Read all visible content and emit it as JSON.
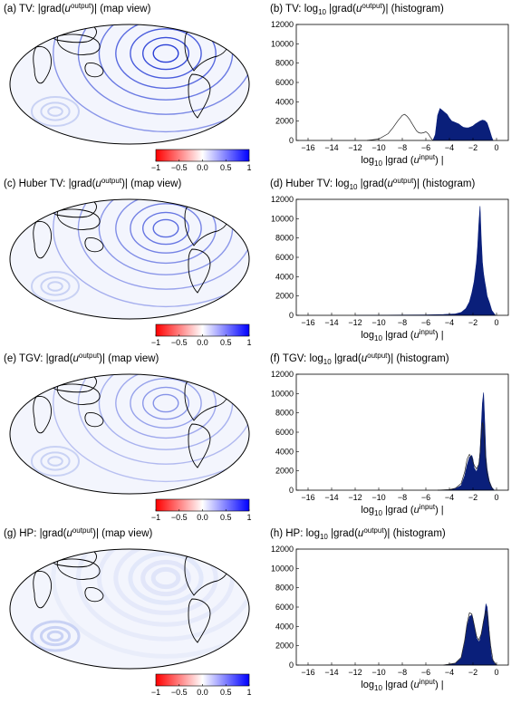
{
  "colorbar": {
    "ticks": [
      "−1",
      "−0.5",
      "0.0",
      "0.5",
      "1"
    ],
    "colors": {
      "neg": "#ff0000",
      "mid": "#ffffff",
      "pos": "#0000ff"
    }
  },
  "colors": {
    "hist_fill": "#0a1f7a",
    "outline": "#000000",
    "shade": "#c9d2f4",
    "ring": "#2a3fd6"
  },
  "panels": [
    {
      "map_title": {
        "pre": "(a) TV: |grad(",
        "var": "u",
        "sup": "output",
        "post": ")| (map view)"
      },
      "hist_title": {
        "pre": "(b) TV: log",
        "sub": "10",
        "mid": " |grad(",
        "var": "u",
        "sup": "output",
        "post": ")| (histogram)"
      },
      "xlabel": {
        "pre": "log",
        "sub": "10",
        "mid": " |grad (",
        "var": "u",
        "sup": "input",
        "post": ") |"
      }
    },
    {
      "map_title": {
        "pre": "(c) Huber TV: |grad(",
        "var": "u",
        "sup": "output",
        "post": ")| (map view)"
      },
      "hist_title": {
        "pre": "(d) Huber TV: log",
        "sub": "10",
        "mid": " |grad(",
        "var": "u",
        "sup": "output",
        "post": ")| (histogram)"
      },
      "xlabel": {
        "pre": "log",
        "sub": "10",
        "mid": " |grad (",
        "var": "u",
        "sup": "input",
        "post": ") |"
      }
    },
    {
      "map_title": {
        "pre": "(e) TGV: |grad(",
        "var": "u",
        "sup": "output",
        "post": ")| (map view)"
      },
      "hist_title": {
        "pre": "(f) TGV: log",
        "sub": "10",
        "mid": " |grad(",
        "var": "u",
        "sup": "output",
        "post": ")| (histogram)"
      },
      "xlabel": {
        "pre": "log",
        "sub": "10",
        "mid": " |grad (",
        "var": "u",
        "sup": "input",
        "post": ") |"
      }
    },
    {
      "map_title": {
        "pre": "(g) HP: |grad(",
        "var": "u",
        "sup": "output",
        "post": ")| (map view)"
      },
      "hist_title": {
        "pre": "(h) HP: log",
        "sub": "10",
        "mid": " |grad(",
        "var": "u",
        "sup": "output",
        "post": ")| (histogram)"
      },
      "xlabel": {
        "pre": "log",
        "sub": "10",
        "mid": " |grad (",
        "var": "u",
        "sup": "input",
        "post": ") |"
      }
    }
  ],
  "chart_data": [
    {
      "type": "area",
      "xlim": [
        -17,
        1
      ],
      "ylim": [
        0,
        12000
      ],
      "xticks": [
        -16,
        -14,
        -12,
        -10,
        -8,
        -6,
        -4,
        -2,
        0
      ],
      "yticks": [
        0,
        2000,
        4000,
        6000,
        8000,
        10000,
        12000
      ],
      "series": [
        {
          "style": "filled",
          "x": [
            -5.4,
            -5.2,
            -5.0,
            -4.8,
            -4.6,
            -4.4,
            -4.2,
            -4.0,
            -3.8,
            -3.6,
            -3.4,
            -3.2,
            -3.0,
            -2.8,
            -2.6,
            -2.4,
            -2.2,
            -2.0,
            -1.8,
            -1.6,
            -1.4,
            -1.2,
            -1.0,
            -0.8,
            -0.6,
            -0.4,
            -0.3
          ],
          "y": [
            0,
            600,
            2600,
            3300,
            3100,
            2900,
            2700,
            2300,
            2000,
            1900,
            1800,
            1700,
            1500,
            1350,
            1300,
            1300,
            1400,
            1500,
            1700,
            1850,
            2000,
            2100,
            2050,
            1800,
            1100,
            300,
            0
          ]
        },
        {
          "style": "outline",
          "x": [
            -11,
            -10,
            -9.2,
            -8.8,
            -8.4,
            -8.0,
            -7.8,
            -7.6,
            -7.4,
            -7.2,
            -7.0,
            -6.8,
            -6.6,
            -6.4,
            -6.2,
            -6.0,
            -5.8,
            -5.6,
            -5.4
          ],
          "y": [
            0,
            150,
            700,
            1300,
            2000,
            2600,
            2700,
            2500,
            2200,
            1800,
            1400,
            1000,
            800,
            750,
            800,
            900,
            700,
            300,
            0
          ]
        }
      ]
    },
    {
      "type": "area",
      "xlim": [
        -17,
        1
      ],
      "ylim": [
        0,
        12000
      ],
      "xticks": [
        -16,
        -14,
        -12,
        -10,
        -8,
        -6,
        -4,
        -2,
        0
      ],
      "yticks": [
        0,
        2000,
        4000,
        6000,
        8000,
        10000,
        12000
      ],
      "series": [
        {
          "style": "filled",
          "x": [
            -12,
            -8,
            -6,
            -4.5,
            -3.5,
            -3.0,
            -2.6,
            -2.3,
            -2.1,
            -1.9,
            -1.7,
            -1.6,
            -1.5,
            -1.4,
            -1.3,
            -1.2,
            -1.1,
            -1.0,
            -0.9,
            -0.8,
            -0.6,
            -0.4,
            -0.1
          ],
          "y": [
            0,
            30,
            50,
            80,
            150,
            300,
            700,
            1400,
            2300,
            3500,
            5500,
            7200,
            9500,
            11300,
            8000,
            5500,
            4300,
            3500,
            2800,
            2000,
            1300,
            500,
            0
          ]
        }
      ]
    },
    {
      "type": "area",
      "xlim": [
        -17,
        1
      ],
      "ylim": [
        0,
        12000
      ],
      "xticks": [
        -16,
        -14,
        -12,
        -10,
        -8,
        -6,
        -4,
        -2,
        0
      ],
      "yticks": [
        0,
        2000,
        4000,
        6000,
        8000,
        10000,
        12000
      ],
      "series": [
        {
          "style": "filled",
          "x": [
            -5,
            -4,
            -3.5,
            -3.0,
            -2.7,
            -2.5,
            -2.3,
            -2.1,
            -2.0,
            -1.9,
            -1.7,
            -1.5,
            -1.4,
            -1.3,
            -1.2,
            -1.1,
            -1.0,
            -0.9,
            -0.8,
            -0.7,
            -0.6,
            -0.4,
            -0.2
          ],
          "y": [
            0,
            50,
            150,
            500,
            1500,
            2600,
            3400,
            3600,
            3200,
            2300,
            1900,
            2600,
            4000,
            6500,
            9000,
            10100,
            7000,
            3500,
            2200,
            1500,
            900,
            300,
            0
          ]
        },
        {
          "style": "outline",
          "x": [
            -5,
            -4,
            -3.5,
            -3.0,
            -2.7,
            -2.5,
            -2.3,
            -2.1,
            -1.9,
            -1.7,
            -1.5,
            -1.4,
            -1.3,
            -1.2,
            -1.1,
            -1.0,
            -0.9,
            -0.8,
            -0.7,
            -0.5,
            -0.3
          ],
          "y": [
            0,
            60,
            200,
            700,
            1900,
            3200,
            3700,
            3300,
            2600,
            2200,
            2700,
            3800,
            5800,
            7000,
            6500,
            4500,
            2900,
            1800,
            1200,
            500,
            0
          ]
        }
      ]
    },
    {
      "type": "area",
      "xlim": [
        -17,
        1
      ],
      "ylim": [
        0,
        12000
      ],
      "xticks": [
        -16,
        -14,
        -12,
        -10,
        -8,
        -6,
        -4,
        -2,
        0
      ],
      "yticks": [
        0,
        2000,
        4000,
        6000,
        8000,
        10000,
        12000
      ],
      "series": [
        {
          "style": "filled",
          "x": [
            -4.5,
            -3.5,
            -3.0,
            -2.7,
            -2.5,
            -2.3,
            -2.1,
            -2.0,
            -1.9,
            -1.7,
            -1.5,
            -1.4,
            -1.2,
            -1.0,
            -0.9,
            -0.8,
            -0.7,
            -0.6,
            -0.5,
            -0.4,
            -0.2,
            0
          ],
          "y": [
            0,
            150,
            700,
            2300,
            4000,
            5000,
            5200,
            4800,
            4000,
            2800,
            2400,
            2600,
            3800,
            5300,
            6300,
            6000,
            4700,
            3000,
            1600,
            700,
            200,
            0
          ]
        },
        {
          "style": "outline",
          "x": [
            -4.5,
            -3.5,
            -3.0,
            -2.7,
            -2.5,
            -2.3,
            -2.1,
            -1.9,
            -1.7,
            -1.5,
            -1.3,
            -1.1,
            -0.9,
            -0.8,
            -0.7,
            -0.5,
            -0.3,
            0
          ],
          "y": [
            0,
            200,
            800,
            2600,
            4300,
            5400,
            5300,
            4200,
            3000,
            2600,
            3200,
            4600,
            5600,
            5400,
            4300,
            2000,
            500,
            0
          ]
        }
      ]
    }
  ]
}
